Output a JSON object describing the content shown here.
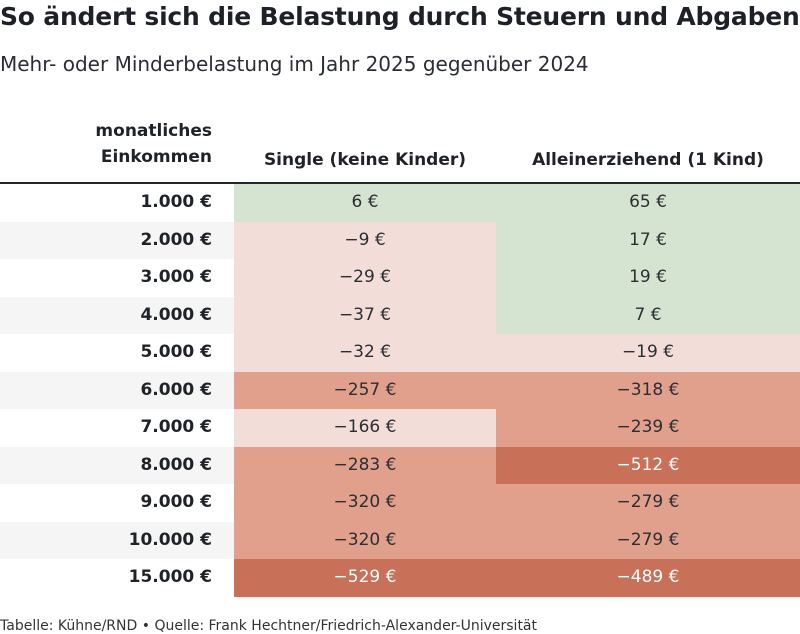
{
  "title": "So ändert sich die Belastung durch Steuern und Abgaben",
  "subtitle": "Mehr- oder Minderbelastung im Jahr 2025 gegenüber 2024",
  "footer": "Tabelle: Kühne/RND • Quelle: Frank Hechtner/Friedrich-Alexander-Universität",
  "colors": {
    "positive": "#d5e4d0",
    "light_negative": "#f3ddd8",
    "medium_negative": "#e0a08c",
    "strong_negative": "#c97058"
  },
  "chart_data": {
    "type": "table",
    "columns": [
      "monatliches\nEinkommen",
      "Single (keine Kinder)",
      "Alleinerziehend (1 Kind)"
    ],
    "rows": [
      {
        "income": "1.000 €",
        "single": "6 €",
        "single_value": 6,
        "single_tone": "positive",
        "alleinerz": "65 €",
        "alleinerz_value": 65,
        "alleinerz_tone": "positive"
      },
      {
        "income": "2.000 €",
        "single": "−9 €",
        "single_value": -9,
        "single_tone": "light_negative",
        "alleinerz": "17 €",
        "alleinerz_value": 17,
        "alleinerz_tone": "positive"
      },
      {
        "income": "3.000 €",
        "single": "−29 €",
        "single_value": -29,
        "single_tone": "light_negative",
        "alleinerz": "19 €",
        "alleinerz_value": 19,
        "alleinerz_tone": "positive"
      },
      {
        "income": "4.000 €",
        "single": "−37 €",
        "single_value": -37,
        "single_tone": "light_negative",
        "alleinerz": "7 €",
        "alleinerz_value": 7,
        "alleinerz_tone": "positive"
      },
      {
        "income": "5.000 €",
        "single": "−32 €",
        "single_value": -32,
        "single_tone": "light_negative",
        "alleinerz": "−19 €",
        "alleinerz_value": -19,
        "alleinerz_tone": "light_negative"
      },
      {
        "income": "6.000 €",
        "single": "−257 €",
        "single_value": -257,
        "single_tone": "medium_negative",
        "alleinerz": "−318 €",
        "alleinerz_value": -318,
        "alleinerz_tone": "medium_negative"
      },
      {
        "income": "7.000 €",
        "single": "−166 €",
        "single_value": -166,
        "single_tone": "light_negative",
        "alleinerz": "−239 €",
        "alleinerz_value": -239,
        "alleinerz_tone": "medium_negative"
      },
      {
        "income": "8.000 €",
        "single": "−283 €",
        "single_value": -283,
        "single_tone": "medium_negative",
        "alleinerz": "−512 €",
        "alleinerz_value": -512,
        "alleinerz_tone": "strong_negative"
      },
      {
        "income": "9.000 €",
        "single": "−320 €",
        "single_value": -320,
        "single_tone": "medium_negative",
        "alleinerz": "−279 €",
        "alleinerz_value": -279,
        "alleinerz_tone": "medium_negative"
      },
      {
        "income": "10.000 €",
        "single": "−320 €",
        "single_value": -320,
        "single_tone": "medium_negative",
        "alleinerz": "−279 €",
        "alleinerz_value": -279,
        "alleinerz_tone": "medium_negative"
      },
      {
        "income": "15.000 €",
        "single": "−529 €",
        "single_value": -529,
        "single_tone": "strong_negative",
        "alleinerz": "−489 €",
        "alleinerz_value": -489,
        "alleinerz_tone": "strong_negative"
      }
    ]
  }
}
